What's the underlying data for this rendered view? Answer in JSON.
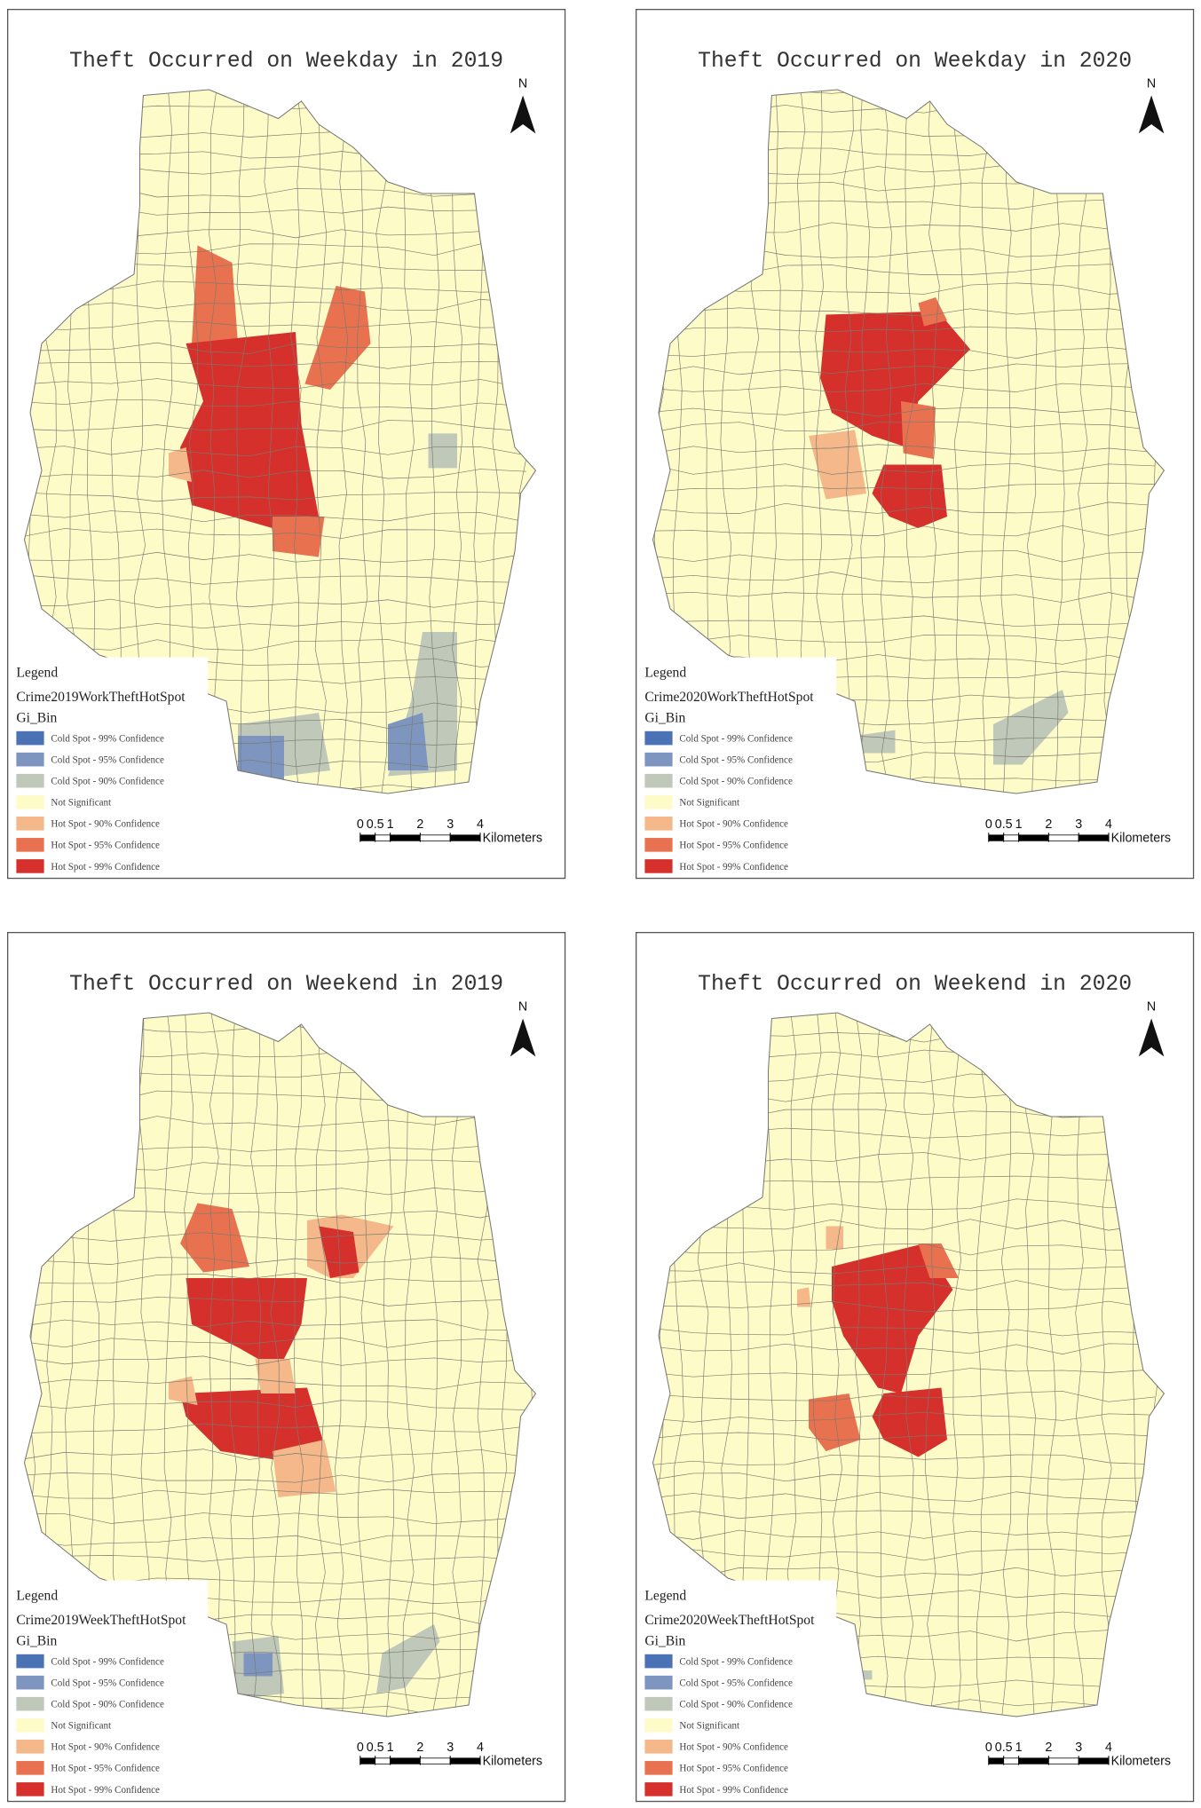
{
  "panels": [
    {
      "title": "Theft Occurred on Weekday in 2019",
      "north": "N",
      "legend": {
        "title": "Legend",
        "layer": "Crime2019WorkTheftHotSpot",
        "field": "Gi_Bin",
        "items": [
          {
            "label": "Cold Spot - 99% Confidence",
            "color": "#4a72b5"
          },
          {
            "label": "Cold Spot - 95% Confidence",
            "color": "#7d95bf"
          },
          {
            "label": "Cold Spot - 90% Confidence",
            "color": "#c0c9b9"
          },
          {
            "label": "Not Significant",
            "color": "#fdfbc8"
          },
          {
            "label": "Hot Spot - 90% Confidence",
            "color": "#f5b88a"
          },
          {
            "label": "Hot Spot - 95% Confidence",
            "color": "#e8714f"
          },
          {
            "label": "Hot Spot - 99% Confidence",
            "color": "#d6302c"
          }
        ]
      },
      "scale": {
        "ticks": [
          0,
          0.5,
          1,
          2,
          3,
          4
        ],
        "unit": "Kilometers"
      }
    },
    {
      "title": "Theft Occurred on Weekday in 2020",
      "north": "N",
      "legend": {
        "title": "Legend",
        "layer": "Crime2020WorkTheftHotSpot",
        "field": "Gi_Bin",
        "items": [
          {
            "label": "Cold Spot - 99% Confidence",
            "color": "#4a72b5"
          },
          {
            "label": "Cold Spot - 95% Confidence",
            "color": "#7d95bf"
          },
          {
            "label": "Cold Spot - 90% Confidence",
            "color": "#c0c9b9"
          },
          {
            "label": "Not Significant",
            "color": "#fdfbc8"
          },
          {
            "label": "Hot Spot - 90% Confidence",
            "color": "#f5b88a"
          },
          {
            "label": "Hot Spot - 95% Confidence",
            "color": "#e8714f"
          },
          {
            "label": "Hot Spot - 99% Confidence",
            "color": "#d6302c"
          }
        ]
      },
      "scale": {
        "ticks": [
          0,
          0.5,
          1,
          2,
          3,
          4
        ],
        "unit": "Kilometers"
      }
    },
    {
      "title": "Theft Occurred on Weekend in 2019",
      "north": "N",
      "legend": {
        "title": "Legend",
        "layer": "Crime2019WeekTheftHotSpot",
        "field": "Gi_Bin",
        "items": [
          {
            "label": "Cold Spot - 99% Confidence",
            "color": "#4a72b5"
          },
          {
            "label": "Cold Spot - 95% Confidence",
            "color": "#7d95bf"
          },
          {
            "label": "Cold Spot - 90% Confidence",
            "color": "#c0c9b9"
          },
          {
            "label": "Not Significant",
            "color": "#fdfbc8"
          },
          {
            "label": "Hot Spot - 90% Confidence",
            "color": "#f5b88a"
          },
          {
            "label": "Hot Spot - 95% Confidence",
            "color": "#e8714f"
          },
          {
            "label": "Hot Spot - 99% Confidence",
            "color": "#d6302c"
          }
        ]
      },
      "scale": {
        "ticks": [
          0,
          0.5,
          1,
          2,
          3,
          4
        ],
        "unit": "Kilometers"
      }
    },
    {
      "title": "Theft Occurred on Weekend in 2020",
      "north": "N",
      "legend": {
        "title": "Legend",
        "layer": "Crime2020WeekTheftHotSpot",
        "field": "Gi_Bin",
        "items": [
          {
            "label": "Cold Spot - 99% Confidence",
            "color": "#4a72b5"
          },
          {
            "label": "Cold Spot - 95% Confidence",
            "color": "#7d95bf"
          },
          {
            "label": "Cold Spot - 90% Confidence",
            "color": "#c0c9b9"
          },
          {
            "label": "Not Significant",
            "color": "#fdfbc8"
          },
          {
            "label": "Hot Spot - 90% Confidence",
            "color": "#f5b88a"
          },
          {
            "label": "Hot Spot - 95% Confidence",
            "color": "#e8714f"
          },
          {
            "label": "Hot Spot - 99% Confidence",
            "color": "#d6302c"
          }
        ]
      },
      "scale": {
        "ticks": [
          0,
          0.5,
          1,
          2,
          3,
          4
        ],
        "unit": "Kilometers"
      }
    }
  ]
}
